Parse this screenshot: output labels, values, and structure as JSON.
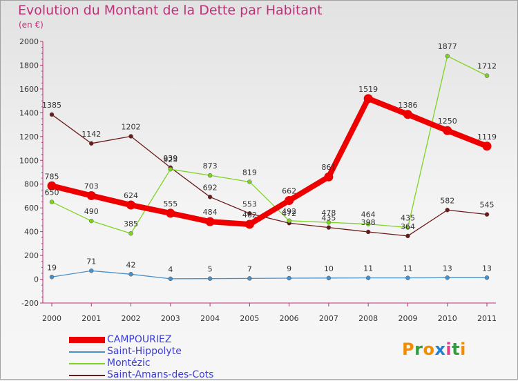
{
  "title": "Evolution du Montant de la Dette par Habitant",
  "unit_label": "(en €)",
  "logo_text": "Proxiti",
  "chart_data": {
    "type": "line",
    "title": "Evolution du Montant de la Dette par Habitant",
    "ylabel": "(en €)",
    "xlabel": "",
    "x": [
      "2000",
      "2001",
      "2002",
      "2003",
      "2004",
      "2005",
      "2006",
      "2007",
      "2008",
      "2009",
      "2010",
      "2011"
    ],
    "ylim": [
      -200,
      2000
    ],
    "yticks": [
      -200,
      0,
      200,
      400,
      600,
      800,
      1000,
      1200,
      1400,
      1600,
      1800,
      2000
    ],
    "grid": false,
    "legend_position": "bottom-left",
    "series": [
      {
        "name": "Saint-Amans-des-Cots",
        "color": "#6b1a1a",
        "values": [
          1385,
          1142,
          1202,
          939,
          692,
          553,
          472,
          435,
          398,
          364,
          582,
          545
        ],
        "labels": [
          "1385",
          "1142",
          "1202",
          "939",
          "692",
          "553",
          "472",
          "435",
          "398",
          "364",
          "582",
          "545"
        ]
      },
      {
        "name": "Montézic",
        "color": "#7ed321",
        "values": [
          650,
          490,
          385,
          925,
          873,
          819,
          492,
          478,
          464,
          435,
          1877,
          1712
        ],
        "labels": [
          "650",
          "490",
          "385",
          "925",
          "873",
          "819",
          "492",
          "478",
          "464",
          "435",
          "1877",
          "1712"
        ]
      },
      {
        "name": "Saint-Hippolyte",
        "color": "#4a90c8",
        "values": [
          19,
          71,
          42,
          4,
          5,
          7,
          9,
          10,
          11,
          11,
          13,
          13
        ],
        "labels": [
          "19",
          "71",
          "42",
          "4",
          "5",
          "7",
          "9",
          "10",
          "11",
          "11",
          "13",
          "13"
        ]
      },
      {
        "name": "CAMPOURIEZ",
        "color": "#ee0000",
        "values": [
          785,
          703,
          624,
          555,
          484,
          462,
          662,
          861,
          1519,
          1386,
          1250,
          1119
        ],
        "labels": [
          "785",
          "703",
          "624",
          "555",
          "484",
          "462",
          "662",
          "861",
          "1519",
          "1386",
          "1250",
          "1119"
        ]
      }
    ],
    "legend_order": [
      "CAMPOURIEZ",
      "Saint-Hippolyte",
      "Montézic",
      "Saint-Amans-des-Cots"
    ]
  }
}
